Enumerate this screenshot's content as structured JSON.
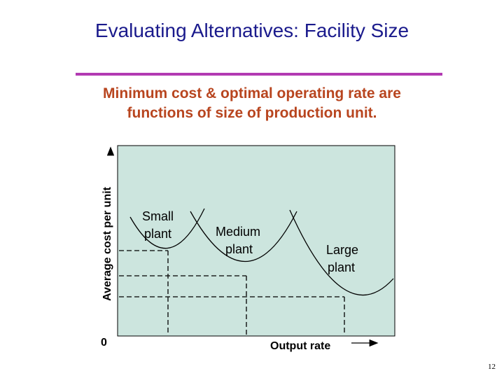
{
  "slide": {
    "title": "Evaluating Alternatives: Facility Size",
    "subtitle_line1": "Minimum cost & optimal operating rate are",
    "subtitle_line2": "functions of size of production unit.",
    "page_number": "12"
  },
  "diagram": {
    "y_axis_label": "Average cost per unit",
    "x_axis_label": "Output rate",
    "origin_label": "0",
    "plot_background": "#cce5de",
    "curves": [
      {
        "label_line1": "Small",
        "label_line2": "plant"
      },
      {
        "label_line1": "Medium",
        "label_line2": "plant"
      },
      {
        "label_line1": "Large",
        "label_line2": "plant"
      }
    ]
  },
  "colors": {
    "title": "#1a1a8c",
    "rule": "#b23ab2",
    "subtitle": "#b8451f"
  }
}
